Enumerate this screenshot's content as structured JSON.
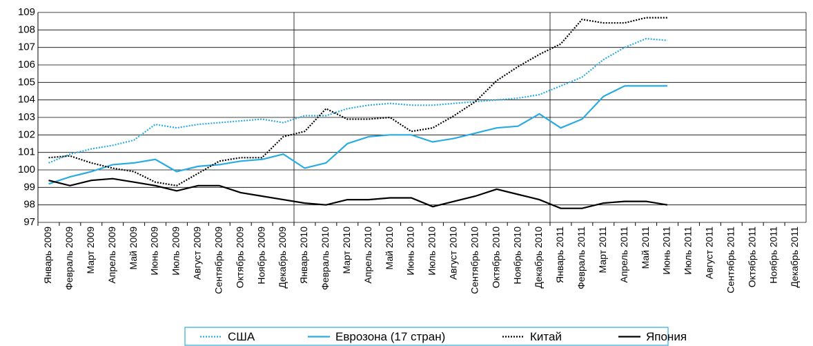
{
  "chart_data": {
    "type": "line",
    "categories": [
      "Январь 2009",
      "Февраль 2009",
      "Март 2009",
      "Апрель 2009",
      "Май 2009",
      "Июнь 2009",
      "Июль 2009",
      "Август 2009",
      "Сентябрь 2009",
      "Октябрь 2009",
      "Ноябрь 2009",
      "Декабрь 2009",
      "Январь 2010",
      "Февраль 2010",
      "Март 2010",
      "Апрель 2010",
      "Май 2010",
      "Июнь 2010",
      "Июль 2010",
      "Август 2010",
      "Сентябрь 2010",
      "Октябрь 2010",
      "Ноябрь 2010",
      "Декабрь 2010",
      "Январь 2011",
      "Февраль 2011",
      "Март 2011",
      "Апрель 2011",
      "Май 2011",
      "Июнь 2011",
      "Июль 2011",
      "Август 2011",
      "Сентябрь 2011",
      "Октябрь 2011",
      "Ноябрь 2011",
      "Декабрь 2011"
    ],
    "series": [
      {
        "name": "США",
        "color": "#29abe2",
        "dash": "dotted",
        "values": [
          100.4,
          100.9,
          101.2,
          101.4,
          101.7,
          102.6,
          102.4,
          102.6,
          102.7,
          102.8,
          102.9,
          102.7,
          103.1,
          103.1,
          103.5,
          103.7,
          103.8,
          103.7,
          103.7,
          103.8,
          103.9,
          104.0,
          104.1,
          104.3,
          104.8,
          105.3,
          106.3,
          107.0,
          107.5,
          107.4,
          null,
          null,
          null,
          null,
          null,
          null
        ]
      },
      {
        "name": "Еврозона (17 стран)",
        "color": "#29abe2",
        "dash": "solid",
        "values": [
          99.2,
          99.6,
          99.9,
          100.3,
          100.4,
          100.6,
          99.9,
          100.2,
          100.3,
          100.5,
          100.6,
          100.9,
          100.1,
          100.4,
          101.5,
          101.9,
          102.0,
          102.0,
          101.6,
          101.8,
          102.1,
          102.4,
          102.5,
          103.2,
          102.4,
          102.9,
          104.2,
          104.8,
          104.8,
          104.8,
          null,
          null,
          null,
          null,
          null,
          null
        ]
      },
      {
        "name": "Китай",
        "color": "#000000",
        "dash": "dotted",
        "values": [
          100.7,
          100.8,
          100.4,
          100.1,
          99.9,
          99.3,
          99.1,
          99.8,
          100.5,
          100.7,
          100.7,
          101.9,
          102.2,
          103.5,
          102.9,
          102.9,
          103.0,
          102.2,
          102.4,
          103.1,
          103.9,
          105.1,
          105.9,
          106.6,
          107.2,
          108.6,
          108.4,
          108.4,
          108.7,
          108.7,
          null,
          null,
          null,
          null,
          null,
          null
        ]
      },
      {
        "name": "Япония",
        "color": "#000000",
        "dash": "solid",
        "values": [
          99.4,
          99.1,
          99.4,
          99.5,
          99.3,
          99.1,
          98.8,
          99.1,
          99.1,
          98.7,
          98.5,
          98.3,
          98.1,
          98.0,
          98.3,
          98.3,
          98.4,
          98.4,
          97.9,
          98.2,
          98.5,
          98.9,
          98.6,
          98.3,
          97.8,
          97.8,
          98.1,
          98.2,
          98.2,
          98.0,
          null,
          null,
          null,
          null,
          null,
          null
        ]
      }
    ],
    "ylim": [
      97,
      109
    ],
    "yticks": [
      97,
      98,
      99,
      100,
      101,
      102,
      103,
      104,
      105,
      106,
      107,
      108,
      109
    ],
    "grid": true,
    "legend": "bottom"
  }
}
